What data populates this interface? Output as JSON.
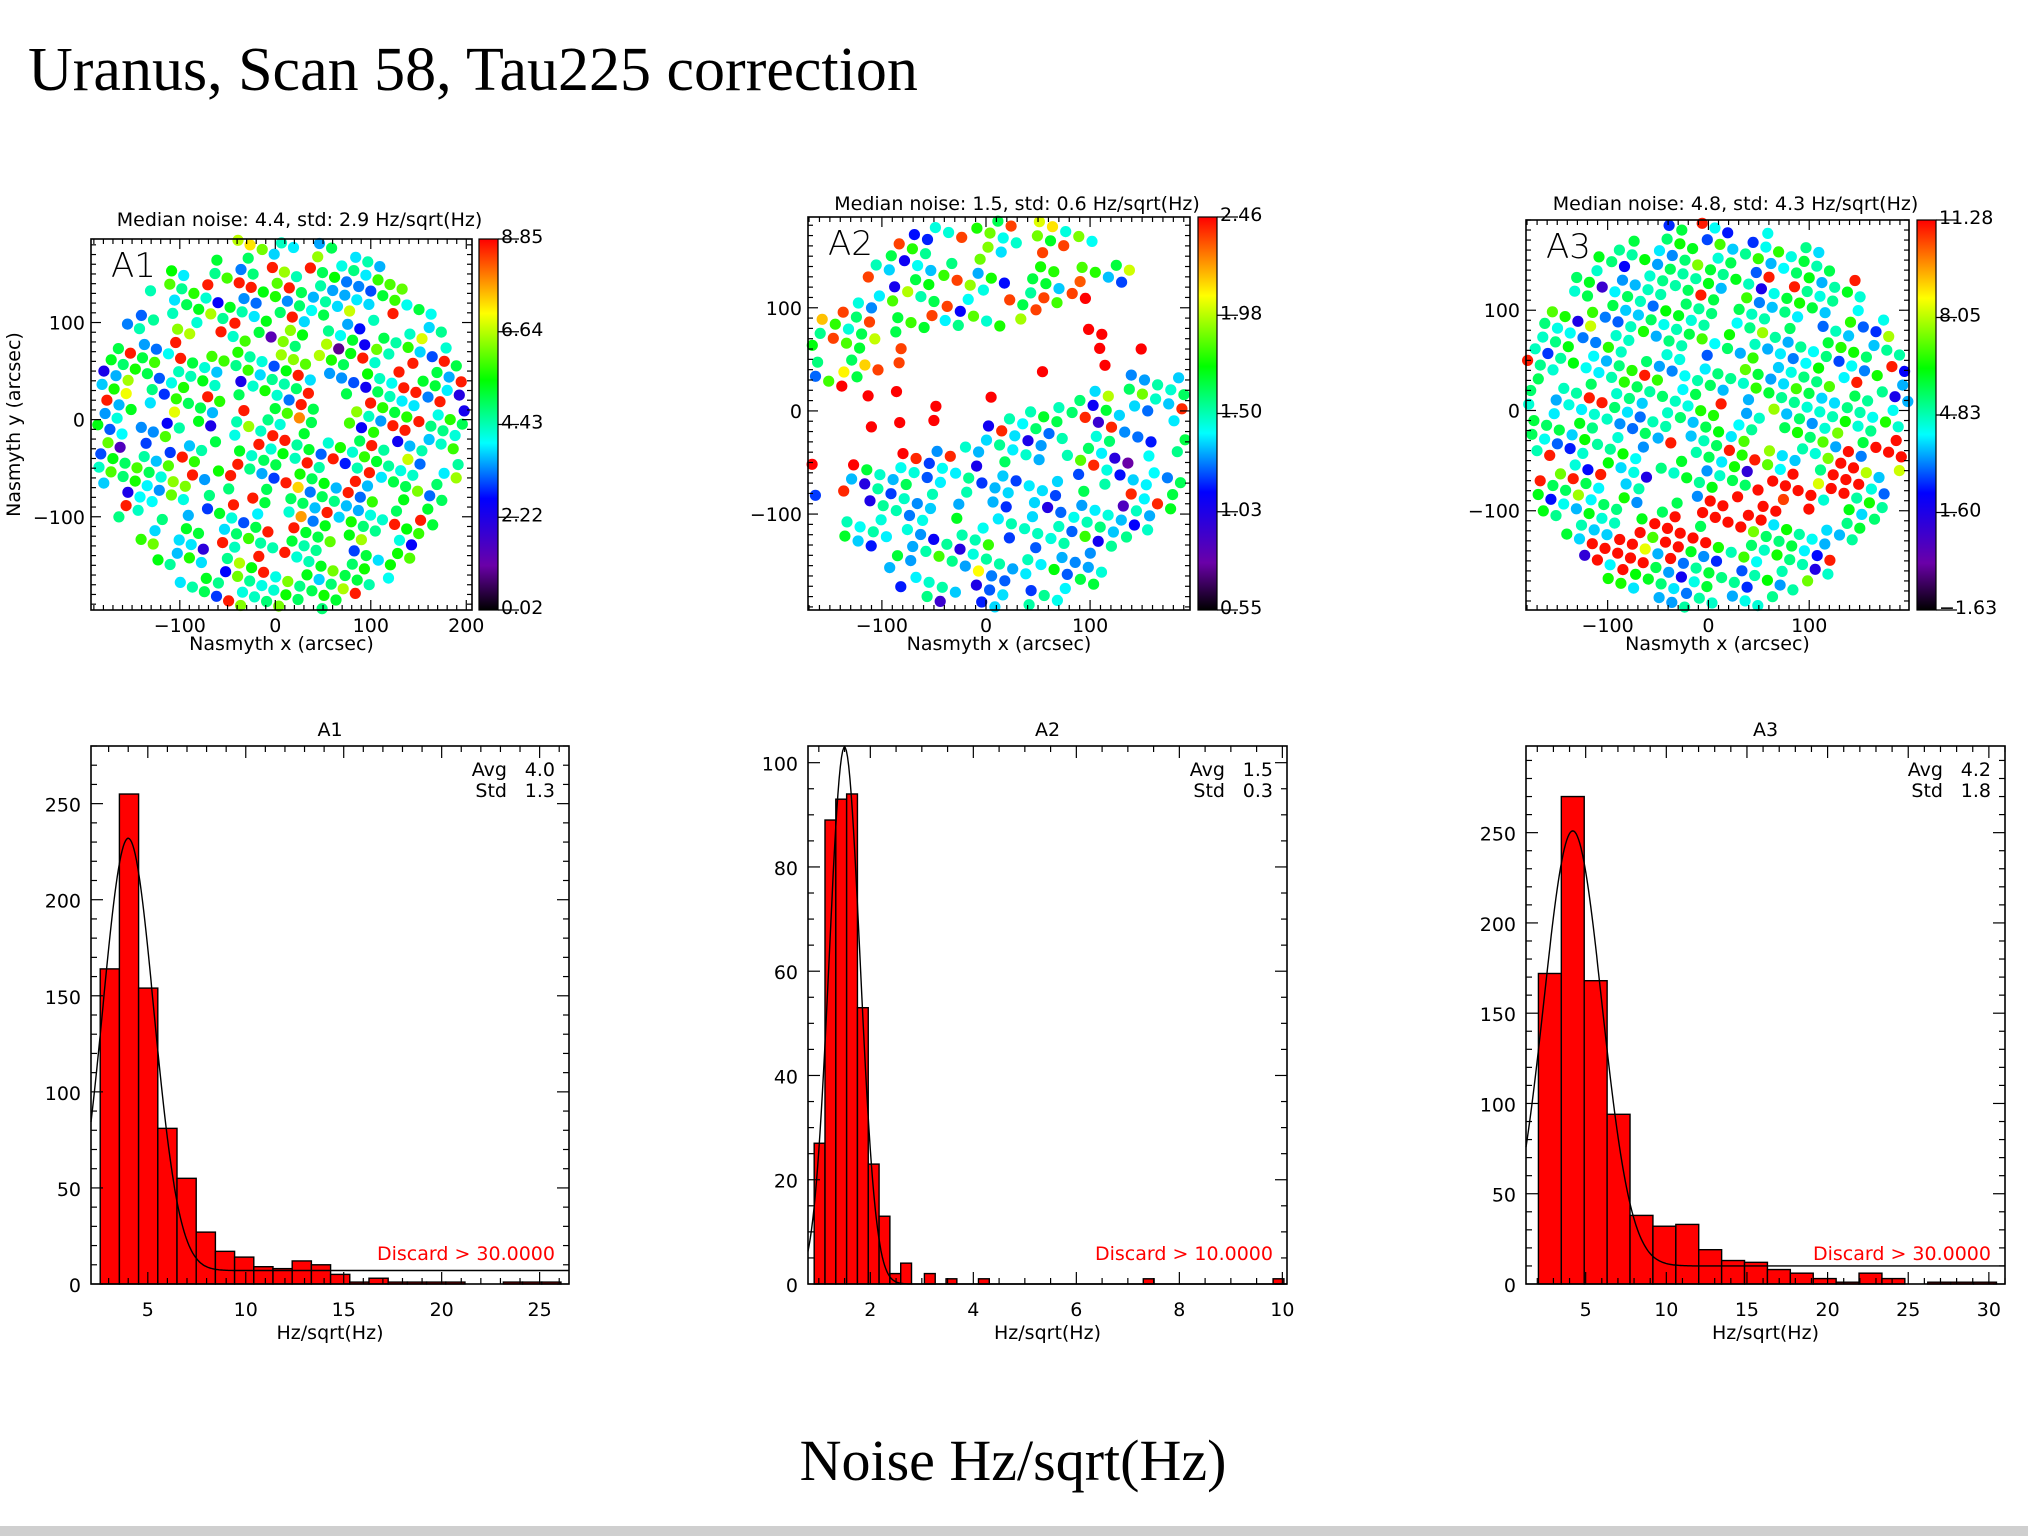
{
  "page": {
    "title": "Uranus, Scan 58, Tau225 correction",
    "caption": "Noise Hz/sqrt(Hz)"
  },
  "colors": {
    "bar_fill": "#ff0000",
    "discard_text": "#ff0000",
    "axis": "#000000",
    "footer_bar": "#cfcfcf"
  },
  "maps": [
    {
      "label": "A1",
      "title": "Median noise: 4.4, std: 2.9 Hz/sqrt(Hz)",
      "xlabel": "Nasmyth x (arcsec)",
      "ylabel": "Nasmyth y (arcsec)",
      "xlim": [
        -193,
        206
      ],
      "ylim": [
        -196,
        186
      ],
      "xticks": [
        -100,
        0,
        100,
        200
      ],
      "yticks": [
        -100,
        0,
        100
      ],
      "xtick_labels": [
        "−100",
        "0",
        "100",
        "200"
      ],
      "ytick_labels": [
        "−100",
        "0",
        "100"
      ],
      "colorbar_range": [
        0.02,
        8.85
      ],
      "colorbar_ticks": [
        "0.02",
        "2.22",
        "4.43",
        "6.64",
        "8.85"
      ]
    },
    {
      "label": "A2",
      "title": "Median noise: 1.5, std: 0.6 Hz/sqrt(Hz)",
      "xlabel": "Nasmyth x (arcsec)",
      "ylabel": "",
      "xlim": [
        -171,
        196
      ],
      "ylim": [
        -193,
        188
      ],
      "xticks": [
        -100,
        0,
        100
      ],
      "yticks": [
        -100,
        0,
        100
      ],
      "xtick_labels": [
        "−100",
        "0",
        "100"
      ],
      "ytick_labels": [
        "−100",
        "0",
        "100"
      ],
      "colorbar_range": [
        0.55,
        2.46
      ],
      "colorbar_ticks": [
        "0.55",
        "1.03",
        "1.50",
        "1.98",
        "2.46"
      ]
    },
    {
      "label": "A3",
      "title": "Median noise: 4.8, std: 4.3 Hz/sqrt(Hz)",
      "xlabel": "Nasmyth x (arcsec)",
      "ylabel": "",
      "xlim": [
        -181,
        199
      ],
      "ylim": [
        -199,
        190
      ],
      "xticks": [
        -100,
        0,
        100
      ],
      "yticks": [
        -100,
        0,
        100
      ],
      "xtick_labels": [
        "−100",
        "0",
        "100"
      ],
      "ytick_labels": [
        "−100",
        "0",
        "100"
      ],
      "colorbar_range": [
        -1.63,
        11.28
      ],
      "colorbar_ticks": [
        "−1.63",
        "1.60",
        "4.83",
        "8.05",
        "11.28"
      ]
    }
  ],
  "chart_data": [
    {
      "type": "bar",
      "title": "A1",
      "xlabel": "Hz/sqrt(Hz)",
      "ylabel": "",
      "xlim": [
        2.1,
        26.5
      ],
      "ylim": [
        0,
        280
      ],
      "xticks": [
        5,
        10,
        15,
        20,
        25
      ],
      "yticks": [
        0,
        50,
        100,
        150,
        200,
        250
      ],
      "xtick_labels": [
        "5",
        "10",
        "15",
        "20",
        "25"
      ],
      "ytick_labels": [
        "0",
        "50",
        "100",
        "150",
        "200",
        "250"
      ],
      "bin_width": 0.98,
      "bin_starts": [
        2.57,
        3.55,
        4.53,
        5.51,
        6.49,
        7.47,
        8.45,
        9.43,
        10.41,
        11.39,
        12.37,
        13.35,
        14.33,
        15.31,
        16.29,
        17.27,
        18.25,
        19.23,
        20.21,
        23.15,
        24.13,
        25.11
      ],
      "counts": [
        164,
        255,
        154,
        81,
        55,
        27,
        17,
        14,
        9,
        8,
        12,
        10,
        5,
        1,
        3,
        1,
        1,
        1,
        1,
        1,
        1,
        1
      ],
      "fit": {
        "mean": 4.0,
        "amplitude": 225,
        "sigma": 1.3,
        "offset": 7
      },
      "stats": {
        "avg_label": "Avg",
        "avg": "4.0",
        "std_label": "Std",
        "std": "1.3"
      },
      "annotation": "Discard > 30.0000"
    },
    {
      "type": "bar",
      "title": "A2",
      "xlabel": "Hz/sqrt(Hz)",
      "ylabel": "",
      "xlim": [
        0.79,
        10.09
      ],
      "ylim": [
        0,
        103.2
      ],
      "xticks": [
        2,
        4,
        6,
        8,
        10
      ],
      "yticks": [
        0,
        20,
        40,
        60,
        80,
        100
      ],
      "xtick_labels": [
        "2",
        "4",
        "6",
        "8",
        "10"
      ],
      "ytick_labels": [
        "0",
        "20",
        "40",
        "60",
        "80",
        "100"
      ],
      "bin_width": 0.21,
      "bin_starts": [
        0.91,
        1.12,
        1.33,
        1.54,
        1.75,
        1.96,
        2.17,
        2.38,
        2.59,
        3.05,
        3.47,
        4.1,
        7.3,
        9.82
      ],
      "counts": [
        27,
        89,
        93,
        94,
        53,
        23,
        13,
        2,
        4,
        2,
        1,
        1,
        1,
        1
      ],
      "fit": {
        "mean": 1.5,
        "amplitude": 103,
        "sigma": 0.3,
        "offset": 0
      },
      "stats": {
        "avg_label": "Avg",
        "avg": "1.5",
        "std_label": "Std",
        "std": "0.3"
      },
      "annotation": "Discard > 10.0000"
    },
    {
      "type": "bar",
      "title": "A3",
      "xlabel": "Hz/sqrt(Hz)",
      "ylabel": "",
      "xlim": [
        1.3,
        31.0
      ],
      "ylim": [
        0,
        298
      ],
      "xticks": [
        5,
        10,
        15,
        20,
        25,
        30
      ],
      "yticks": [
        0,
        50,
        100,
        150,
        200,
        250
      ],
      "xtick_labels": [
        "5",
        "10",
        "15",
        "20",
        "25",
        "30"
      ],
      "ytick_labels": [
        "0",
        "50",
        "100",
        "150",
        "200",
        "250"
      ],
      "bin_width": 1.42,
      "bin_starts": [
        2.07,
        3.49,
        4.91,
        6.33,
        7.75,
        9.17,
        10.59,
        12.01,
        13.43,
        14.85,
        16.27,
        17.69,
        19.11,
        20.53,
        21.95,
        23.37,
        24.79,
        26.21,
        27.63,
        29.05
      ],
      "counts": [
        172,
        270,
        168,
        94,
        38,
        32,
        33,
        19,
        13,
        12,
        8,
        6,
        3,
        1,
        6,
        3,
        0,
        1,
        1,
        1
      ],
      "fit": {
        "mean": 4.2,
        "amplitude": 241,
        "sigma": 1.8,
        "offset": 10
      },
      "stats": {
        "avg_label": "Avg",
        "avg": "4.2",
        "std_label": "Std",
        "std": "1.8"
      },
      "annotation": "Discard > 30.0000"
    }
  ]
}
